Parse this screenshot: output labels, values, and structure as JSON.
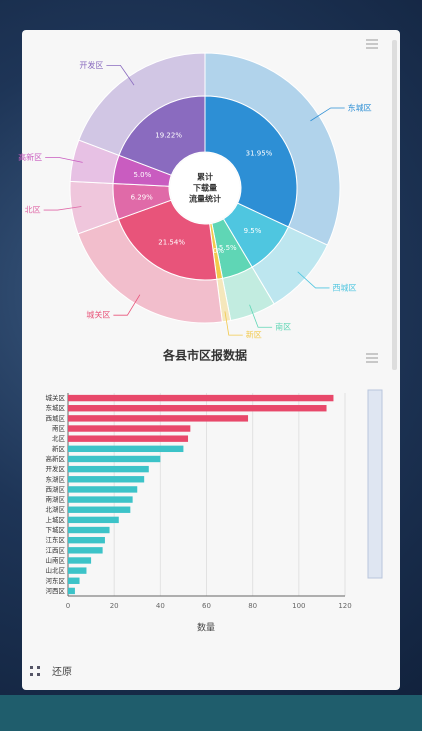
{
  "toolbar": {
    "label": "还原"
  },
  "chart_data": [
    {
      "type": "donut",
      "center_text": [
        "累计",
        "下载量",
        "流量统计"
      ],
      "categories": [
        "东城区",
        "西城区",
        "南区",
        "新区",
        "城关区",
        "北区",
        "高新区",
        "开发区"
      ],
      "values": [
        31.95,
        9.5,
        5.5,
        1.0,
        21.54,
        6.29,
        5.0,
        19.22
      ],
      "value_labels": [
        "31.95%",
        "9.5%",
        "5.5%",
        "1.0%",
        "21.54%",
        "6.29%",
        "5.0%",
        "19.22%"
      ],
      "colors": [
        "#2d8fd5",
        "#4fc6e0",
        "#5fd6b5",
        "#f2c94c",
        "#e8547a",
        "#e06aa8",
        "#c95cc0",
        "#8a6bbf"
      ]
    },
    {
      "type": "hbar",
      "title": "各县市区报数据",
      "xlabel": "数量",
      "categories": [
        "城关区",
        "东城区",
        "西城区",
        "南区",
        "北区",
        "新区",
        "高新区",
        "开发区",
        "东湖区",
        "西湖区",
        "南湖区",
        "北湖区",
        "上城区",
        "下城区",
        "江东区",
        "江西区",
        "山南区",
        "山北区",
        "河东区",
        "河西区"
      ],
      "values": [
        115,
        112,
        78,
        53,
        52,
        50,
        40,
        35,
        33,
        30,
        28,
        27,
        22,
        18,
        16,
        15,
        10,
        8,
        5,
        3
      ],
      "colors": [
        "#e8486a",
        "#e8486a",
        "#e8486a",
        "#e8486a",
        "#e8486a",
        "#3cc3c8",
        "#3cc3c8",
        "#3cc3c8",
        "#3cc3c8",
        "#3cc3c8",
        "#3cc3c8",
        "#3cc3c8",
        "#3cc3c8",
        "#3cc3c8",
        "#3cc3c8",
        "#3cc3c8",
        "#3cc3c8",
        "#3cc3c8",
        "#3cc3c8",
        "#3cc3c8"
      ],
      "xlim": [
        0,
        120
      ],
      "xticks": [
        0,
        20,
        40,
        60,
        80,
        100,
        120
      ],
      "grid": true
    }
  ]
}
